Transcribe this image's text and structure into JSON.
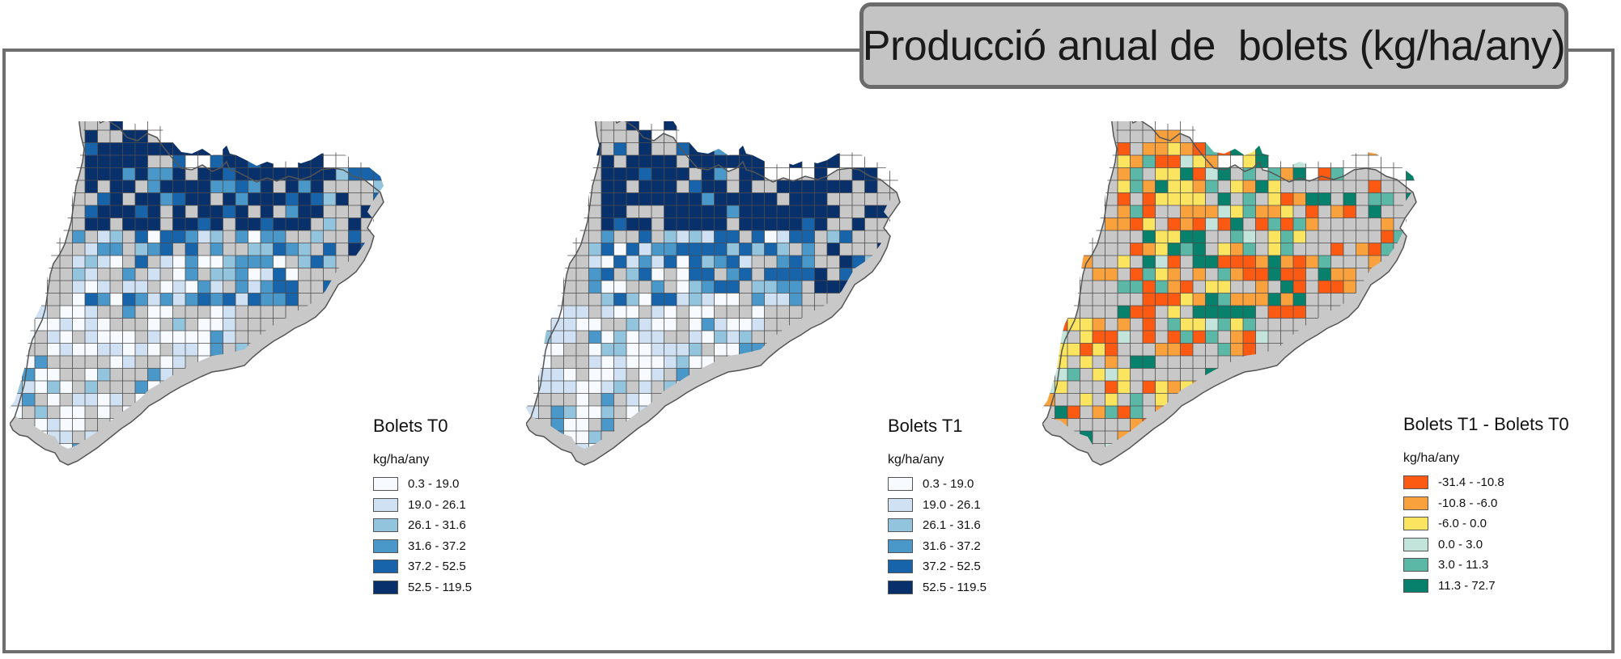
{
  "title": "Producció anual de  bolets (kg/ha/any)",
  "maps": [
    {
      "id": "t0",
      "legend_title": "Bolets T0",
      "unit": "kg/ha/any",
      "classes": [
        {
          "label": "0.3 - 19.0",
          "color": "#f7fbff"
        },
        {
          "label": "19.0 - 26.1",
          "color": "#cfe1f2"
        },
        {
          "label": "26.1 - 31.6",
          "color": "#93c4de"
        },
        {
          "label": "31.6 - 37.2",
          "color": "#4a98c9"
        },
        {
          "label": "37.2 - 52.5",
          "color": "#1764ab"
        },
        {
          "label": "52.5 - 119.5",
          "color": "#08306b"
        }
      ]
    },
    {
      "id": "t1",
      "legend_title": "Bolets T1",
      "unit": "kg/ha/any",
      "classes": [
        {
          "label": "0.3 - 19.0",
          "color": "#f7fbff"
        },
        {
          "label": "19.0 - 26.1",
          "color": "#cfe1f2"
        },
        {
          "label": "26.1 - 31.6",
          "color": "#93c4de"
        },
        {
          "label": "31.6 - 37.2",
          "color": "#4a98c9"
        },
        {
          "label": "37.2 - 52.5",
          "color": "#1764ab"
        },
        {
          "label": "52.5 - 119.5",
          "color": "#08306b"
        }
      ]
    },
    {
      "id": "diff",
      "legend_title": "Bolets T1 - Bolets T0",
      "unit": "kg/ha/any",
      "classes": [
        {
          "label": "-31.4 - -10.8",
          "color": "#fc5a13"
        },
        {
          "label": "-10.8 - -6.0",
          "color": "#f9a13c"
        },
        {
          "label": "-6.0 - 0.0",
          "color": "#fbe45f"
        },
        {
          "label": "0.0 - 3.0",
          "color": "#c2e4da"
        },
        {
          "label": "3.0 - 11.3",
          "color": "#5bb8a6"
        },
        {
          "label": "11.3 - 72.7",
          "color": "#07816c"
        }
      ]
    }
  ],
  "background_cell_color": "#c8c8c8"
}
